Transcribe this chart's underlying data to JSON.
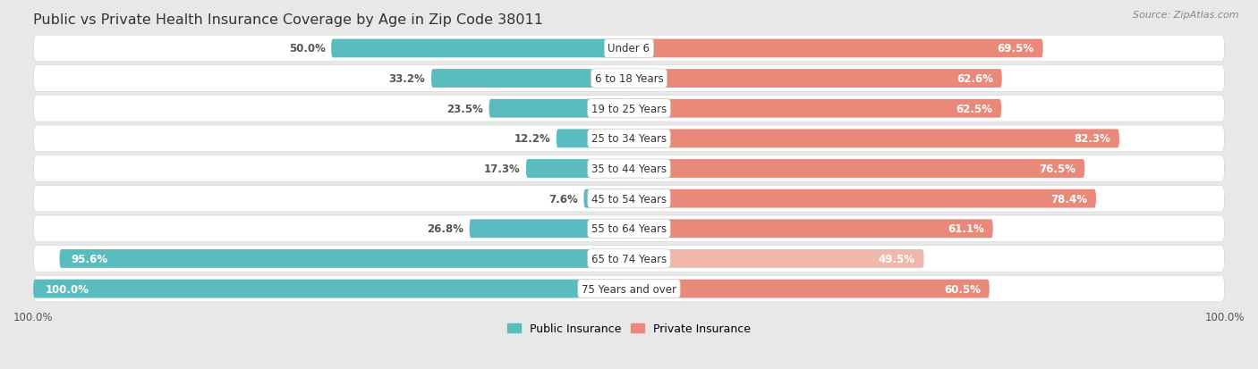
{
  "title": "Public vs Private Health Insurance Coverage by Age in Zip Code 38011",
  "source": "Source: ZipAtlas.com",
  "categories": [
    "Under 6",
    "6 to 18 Years",
    "19 to 25 Years",
    "25 to 34 Years",
    "35 to 44 Years",
    "45 to 54 Years",
    "55 to 64 Years",
    "65 to 74 Years",
    "75 Years and over"
  ],
  "public_values": [
    50.0,
    33.2,
    23.5,
    12.2,
    17.3,
    7.6,
    26.8,
    95.6,
    100.0
  ],
  "private_values": [
    69.5,
    62.6,
    62.5,
    82.3,
    76.5,
    78.4,
    61.1,
    49.5,
    60.5
  ],
  "public_color": "#5bbcbf",
  "private_color": "#e8897a",
  "private_color_light": "#f0b8ad",
  "bg_color": "#e8e8e8",
  "row_bg": "#f5f5f5",
  "row_border": "#d8d8d8",
  "title_fontsize": 11.5,
  "label_fontsize": 8.5,
  "legend_fontsize": 9,
  "source_fontsize": 8
}
